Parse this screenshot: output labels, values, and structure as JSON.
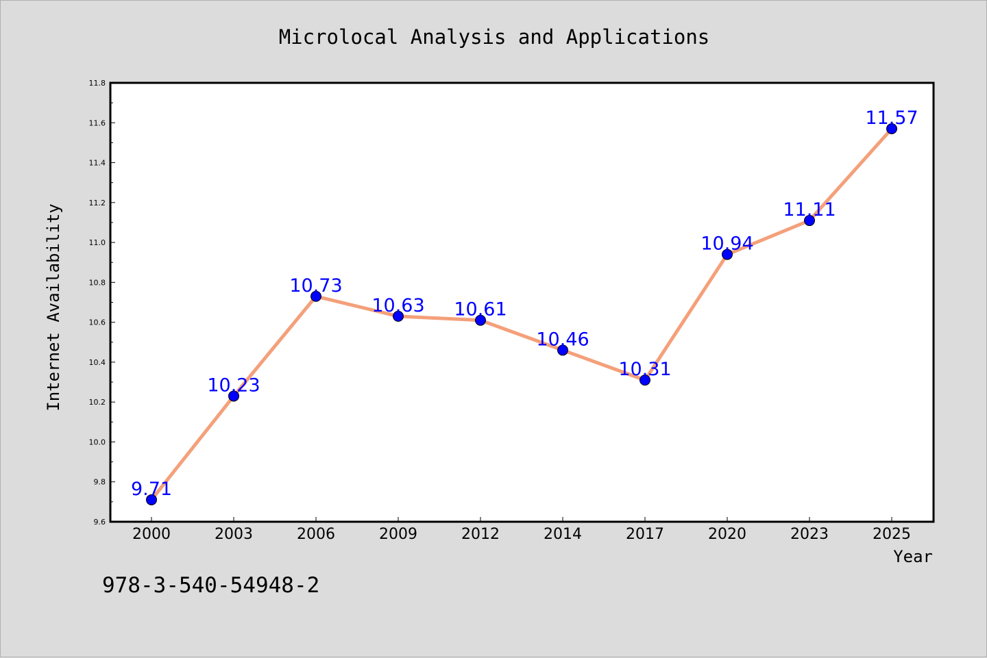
{
  "chart_data": {
    "type": "line",
    "title": "Microlocal Analysis and Applications",
    "xlabel": "Year",
    "ylabel": "Internet Availability",
    "categories": [
      "2000",
      "2003",
      "2006",
      "2009",
      "2012",
      "2014",
      "2017",
      "2020",
      "2023",
      "2025"
    ],
    "series": [
      {
        "values": [
          9.71,
          10.23,
          10.73,
          10.63,
          10.61,
          10.46,
          10.31,
          10.94,
          11.11,
          11.57
        ],
        "data_labels": [
          "9.71",
          "10.23",
          "10.73",
          "10.63",
          "10.61",
          "10.46",
          "10.31",
          "10.94",
          "11.11",
          "11.57"
        ],
        "line_color": "#f4a07a",
        "marker_color": "#0000ff",
        "label_color": "#0000ff"
      }
    ],
    "ylim": [
      9.6,
      11.8
    ],
    "yticks": [
      "9.6",
      "9.8",
      "10.0",
      "10.2",
      "10.4",
      "10.6",
      "10.8",
      "11.0",
      "11.2",
      "11.4",
      "11.6",
      "11.8"
    ],
    "grid": false,
    "legend": "none"
  },
  "footer_text": "978-3-540-54948-2",
  "colors": {
    "background": "#dcdcdc",
    "plot_background": "#ffffff",
    "axis": "#000000"
  }
}
